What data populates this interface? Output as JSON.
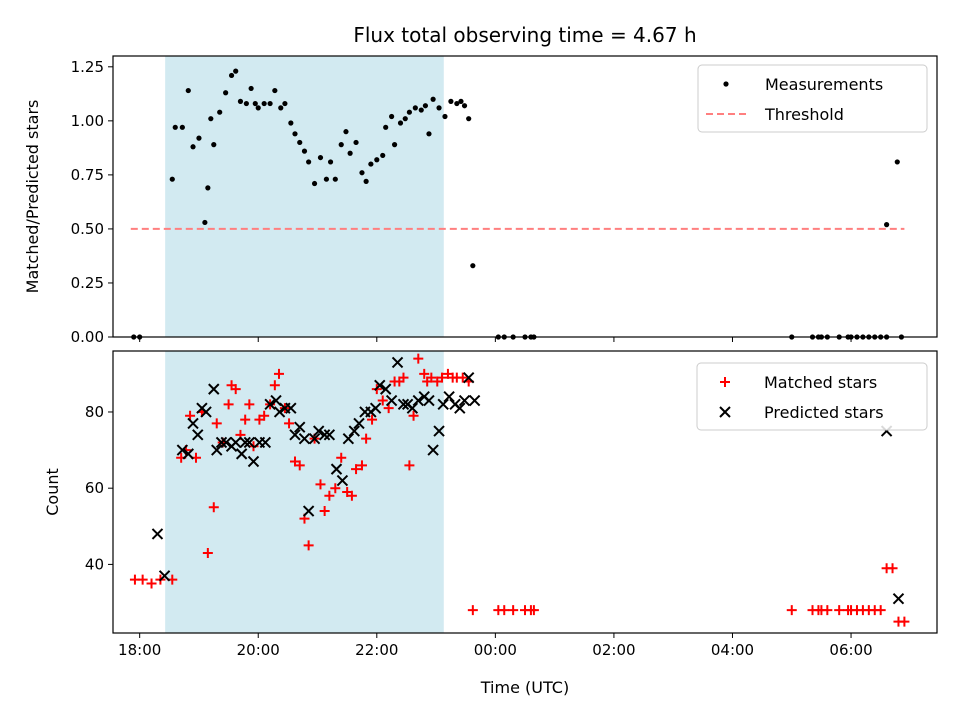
{
  "chart_data": [
    {
      "type": "scatter",
      "title": "Flux total observing time = 4.67 h",
      "xlabel": "",
      "ylabel": "Matched/Predicted stars",
      "xlim": [
        -0.45,
        13.45
      ],
      "ylim": [
        0.0,
        1.3
      ],
      "x_ticks": [
        0,
        2,
        4,
        6,
        8,
        10,
        12
      ],
      "y_ticks": [
        0.0,
        0.25,
        0.5,
        0.75,
        1.0,
        1.25
      ],
      "y_tick_labels": [
        "0.00",
        "0.25",
        "0.50",
        "0.75",
        "1.00",
        "1.25"
      ],
      "shaded_x_range": [
        0.43,
        5.13
      ],
      "shade_color": "#add8e6",
      "legend": "top-right",
      "series": [
        {
          "name": "Measurements",
          "kind": "points",
          "color": "#000000",
          "points": [
            [
              -0.1,
              0
            ],
            [
              0,
              0
            ],
            [
              0.55,
              0.73
            ],
            [
              0.6,
              0.97
            ],
            [
              0.72,
              0.97
            ],
            [
              0.82,
              1.14
            ],
            [
              0.9,
              0.88
            ],
            [
              1.0,
              0.92
            ],
            [
              1.1,
              0.53
            ],
            [
              1.15,
              0.69
            ],
            [
              1.2,
              1.01
            ],
            [
              1.25,
              0.89
            ],
            [
              1.35,
              1.04
            ],
            [
              1.45,
              1.13
            ],
            [
              1.55,
              1.21
            ],
            [
              1.62,
              1.23
            ],
            [
              1.7,
              1.09
            ],
            [
              1.8,
              1.08
            ],
            [
              1.88,
              1.15
            ],
            [
              1.95,
              1.08
            ],
            [
              2.0,
              1.06
            ],
            [
              2.1,
              1.08
            ],
            [
              2.2,
              1.08
            ],
            [
              2.28,
              1.14
            ],
            [
              2.38,
              1.06
            ],
            [
              2.45,
              1.08
            ],
            [
              2.55,
              0.99
            ],
            [
              2.62,
              0.94
            ],
            [
              2.7,
              0.9
            ],
            [
              2.78,
              0.86
            ],
            [
              2.85,
              0.81
            ],
            [
              2.95,
              0.71
            ],
            [
              3.05,
              0.83
            ],
            [
              3.15,
              0.73
            ],
            [
              3.22,
              0.81
            ],
            [
              3.3,
              0.73
            ],
            [
              3.4,
              0.89
            ],
            [
              3.48,
              0.95
            ],
            [
              3.55,
              0.85
            ],
            [
              3.65,
              0.9
            ],
            [
              3.75,
              0.76
            ],
            [
              3.82,
              0.72
            ],
            [
              3.9,
              0.8
            ],
            [
              4.0,
              0.82
            ],
            [
              4.1,
              0.84
            ],
            [
              4.15,
              0.97
            ],
            [
              4.25,
              1.02
            ],
            [
              4.3,
              0.89
            ],
            [
              4.4,
              0.99
            ],
            [
              4.48,
              1.01
            ],
            [
              4.55,
              1.04
            ],
            [
              4.65,
              1.06
            ],
            [
              4.75,
              1.05
            ],
            [
              4.82,
              1.07
            ],
            [
              4.88,
              0.94
            ],
            [
              4.95,
              1.1
            ],
            [
              5.05,
              1.06
            ],
            [
              5.15,
              1.02
            ],
            [
              5.25,
              1.09
            ],
            [
              5.35,
              1.08
            ],
            [
              5.42,
              1.09
            ],
            [
              5.48,
              1.07
            ],
            [
              5.55,
              1.01
            ],
            [
              5.62,
              0.33
            ],
            [
              6.05,
              0
            ],
            [
              6.15,
              0
            ],
            [
              6.3,
              0
            ],
            [
              6.5,
              0
            ],
            [
              6.6,
              0
            ],
            [
              6.65,
              0
            ],
            [
              11.0,
              0
            ],
            [
              11.35,
              0
            ],
            [
              11.45,
              0
            ],
            [
              11.5,
              0
            ],
            [
              11.6,
              0
            ],
            [
              11.8,
              0
            ],
            [
              11.95,
              0
            ],
            [
              12.0,
              0
            ],
            [
              12.1,
              0
            ],
            [
              12.2,
              0
            ],
            [
              12.3,
              0
            ],
            [
              12.4,
              0
            ],
            [
              12.5,
              0
            ],
            [
              12.6,
              0
            ],
            [
              12.6,
              0.52
            ],
            [
              12.78,
              0.81
            ],
            [
              12.85,
              0
            ]
          ]
        },
        {
          "name": "Threshold",
          "kind": "dashed-line",
          "color": "#ff7f7f",
          "x": [
            -0.15,
            12.9
          ],
          "y": [
            0.5,
            0.5
          ]
        }
      ]
    },
    {
      "type": "scatter",
      "title": "",
      "xlabel": "Time (UTC)",
      "ylabel": "Count",
      "xlim": [
        -0.45,
        13.45
      ],
      "ylim": [
        22.0,
        96.0
      ],
      "x_ticks": [
        0,
        2,
        4,
        6,
        8,
        10,
        12
      ],
      "x_tick_labels": [
        "18:00",
        "20:00",
        "22:00",
        "00:00",
        "02:00",
        "04:00",
        "06:00"
      ],
      "y_ticks": [
        40,
        60,
        80
      ],
      "y_tick_labels": [
        "40",
        "60",
        "80"
      ],
      "shaded_x_range": [
        0.43,
        5.13
      ],
      "shade_color": "#add8e6",
      "legend": "top-right",
      "series": [
        {
          "name": "Matched stars",
          "kind": "plus",
          "color": "#ff0000",
          "points": [
            [
              -0.08,
              36
            ],
            [
              0.05,
              36
            ],
            [
              0.2,
              35
            ],
            [
              0.35,
              36
            ],
            [
              0.55,
              36
            ],
            [
              0.7,
              68
            ],
            [
              0.78,
              70
            ],
            [
              0.85,
              79
            ],
            [
              0.95,
              68
            ],
            [
              1.05,
              80
            ],
            [
              1.15,
              43
            ],
            [
              1.25,
              55
            ],
            [
              1.3,
              77
            ],
            [
              1.4,
              72
            ],
            [
              1.5,
              82
            ],
            [
              1.55,
              87
            ],
            [
              1.62,
              86
            ],
            [
              1.7,
              74
            ],
            [
              1.78,
              78
            ],
            [
              1.85,
              82
            ],
            [
              1.92,
              71
            ],
            [
              2.02,
              78
            ],
            [
              2.1,
              79
            ],
            [
              2.2,
              82
            ],
            [
              2.28,
              87
            ],
            [
              2.35,
              90
            ],
            [
              2.45,
              81
            ],
            [
              2.52,
              77
            ],
            [
              2.62,
              67
            ],
            [
              2.7,
              66
            ],
            [
              2.78,
              52
            ],
            [
              2.85,
              45
            ],
            [
              2.95,
              73
            ],
            [
              3.05,
              61
            ],
            [
              3.12,
              54
            ],
            [
              3.2,
              58
            ],
            [
              3.3,
              60
            ],
            [
              3.4,
              68
            ],
            [
              3.5,
              59
            ],
            [
              3.58,
              58
            ],
            [
              3.65,
              65
            ],
            [
              3.75,
              66
            ],
            [
              3.82,
              73
            ],
            [
              3.92,
              78
            ],
            [
              4.0,
              86
            ],
            [
              4.1,
              83
            ],
            [
              4.2,
              81
            ],
            [
              4.3,
              88
            ],
            [
              4.38,
              88
            ],
            [
              4.45,
              89
            ],
            [
              4.55,
              66
            ],
            [
              4.62,
              79
            ],
            [
              4.7,
              94
            ],
            [
              4.8,
              90
            ],
            [
              4.85,
              88
            ],
            [
              4.92,
              89
            ],
            [
              5.02,
              88
            ],
            [
              5.1,
              89
            ],
            [
              5.2,
              90
            ],
            [
              5.28,
              89
            ],
            [
              5.35,
              89
            ],
            [
              5.45,
              89
            ],
            [
              5.55,
              88
            ],
            [
              5.62,
              28
            ],
            [
              6.05,
              28
            ],
            [
              6.15,
              28
            ],
            [
              6.3,
              28
            ],
            [
              6.5,
              28
            ],
            [
              6.6,
              28
            ],
            [
              6.65,
              28
            ],
            [
              11.0,
              28
            ],
            [
              11.35,
              28
            ],
            [
              11.45,
              28
            ],
            [
              11.5,
              28
            ],
            [
              11.6,
              28
            ],
            [
              11.8,
              28
            ],
            [
              11.95,
              28
            ],
            [
              12.0,
              28
            ],
            [
              12.1,
              28
            ],
            [
              12.2,
              28
            ],
            [
              12.3,
              28
            ],
            [
              12.4,
              28
            ],
            [
              12.5,
              28
            ],
            [
              12.6,
              39
            ],
            [
              12.7,
              39
            ],
            [
              12.8,
              25
            ],
            [
              12.9,
              25
            ]
          ]
        },
        {
          "name": "Predicted stars",
          "kind": "x",
          "color": "#000000",
          "points": [
            [
              0.3,
              48
            ],
            [
              0.42,
              37
            ],
            [
              0.72,
              70
            ],
            [
              0.82,
              69
            ],
            [
              0.9,
              77
            ],
            [
              0.98,
              74
            ],
            [
              1.05,
              81
            ],
            [
              1.12,
              80
            ],
            [
              1.25,
              86
            ],
            [
              1.3,
              70
            ],
            [
              1.38,
              72
            ],
            [
              1.46,
              72
            ],
            [
              1.55,
              71
            ],
            [
              1.62,
              72
            ],
            [
              1.72,
              69
            ],
            [
              1.78,
              72
            ],
            [
              1.85,
              72
            ],
            [
              1.92,
              67
            ],
            [
              2.02,
              72
            ],
            [
              2.12,
              72
            ],
            [
              2.2,
              82
            ],
            [
              2.3,
              83
            ],
            [
              2.36,
              80
            ],
            [
              2.45,
              81
            ],
            [
              2.55,
              81
            ],
            [
              2.62,
              74
            ],
            [
              2.7,
              76
            ],
            [
              2.78,
              73
            ],
            [
              2.85,
              54
            ],
            [
              2.95,
              73
            ],
            [
              3.02,
              75
            ],
            [
              3.12,
              74
            ],
            [
              3.2,
              74
            ],
            [
              3.32,
              65
            ],
            [
              3.42,
              62
            ],
            [
              3.52,
              73
            ],
            [
              3.62,
              75
            ],
            [
              3.7,
              77
            ],
            [
              3.8,
              80
            ],
            [
              3.9,
              80
            ],
            [
              3.98,
              81
            ],
            [
              4.05,
              87
            ],
            [
              4.15,
              86
            ],
            [
              4.25,
              83
            ],
            [
              4.35,
              93
            ],
            [
              4.45,
              82
            ],
            [
              4.52,
              82
            ],
            [
              4.6,
              81
            ],
            [
              4.7,
              83
            ],
            [
              4.8,
              84
            ],
            [
              4.88,
              83
            ],
            [
              4.95,
              70
            ],
            [
              5.05,
              75
            ],
            [
              5.12,
              82
            ],
            [
              5.22,
              84
            ],
            [
              5.32,
              82
            ],
            [
              5.4,
              81
            ],
            [
              5.48,
              83
            ],
            [
              5.55,
              89
            ],
            [
              5.65,
              83
            ],
            [
              12.6,
              75
            ],
            [
              12.8,
              31
            ]
          ]
        }
      ]
    }
  ]
}
